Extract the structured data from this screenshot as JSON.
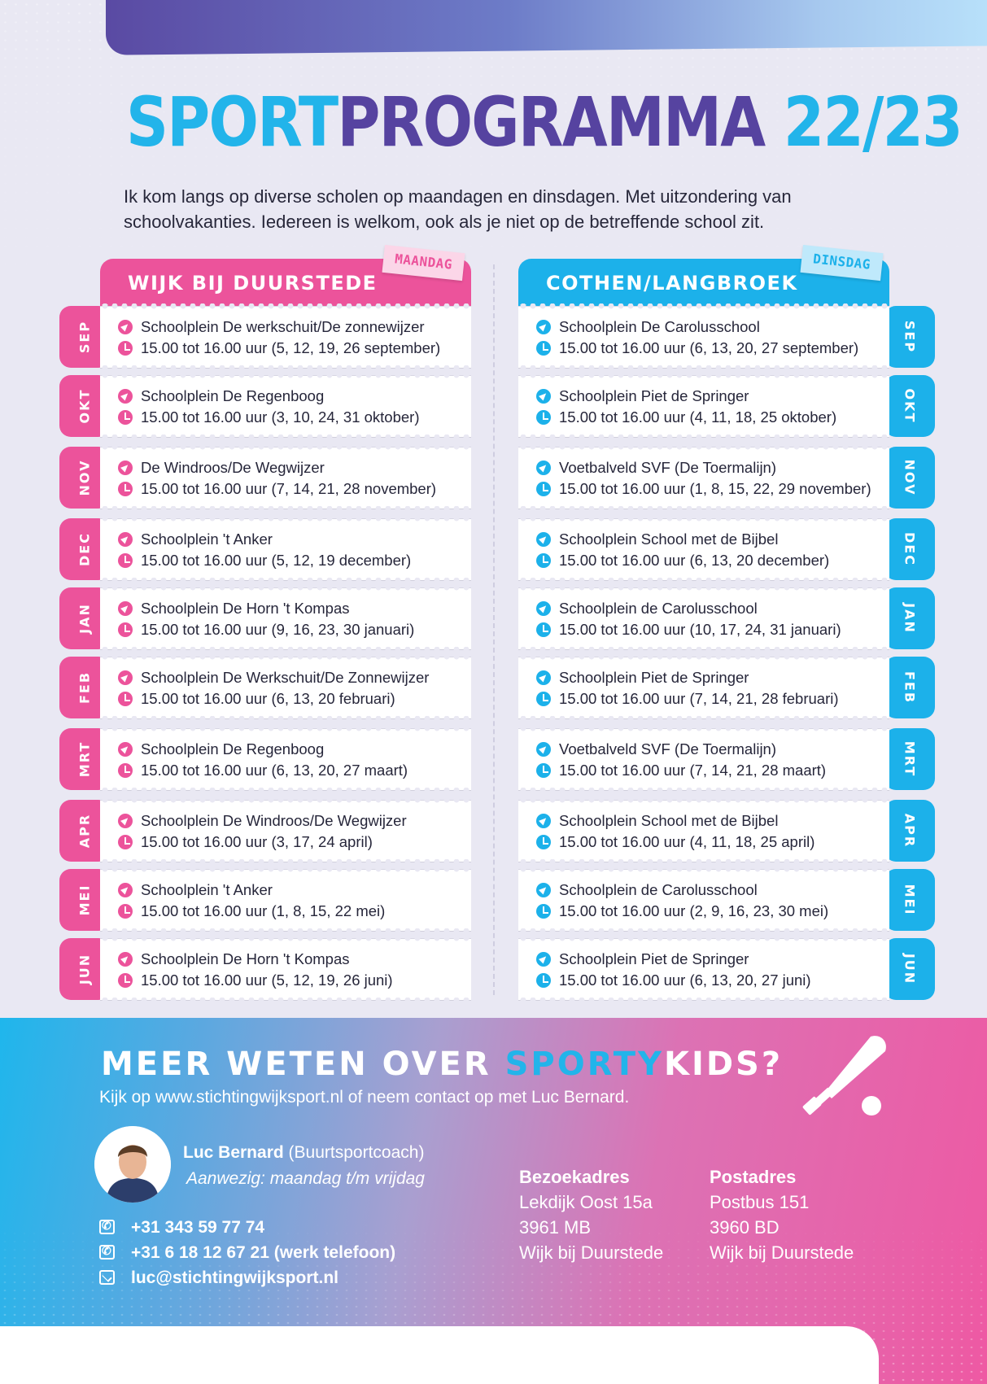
{
  "title": {
    "part1": "SPORT",
    "part2": "PROGRAMMA",
    "part3": "22/23"
  },
  "intro": "Ik kom langs op diverse scholen op maandagen en dinsdagen. Met uitzondering van schoolvakanties. Iedereen is welkom, ook als je niet op de betreffende school zit.",
  "left": {
    "header": "WIJK BIJ DUURSTEDE",
    "tag": "MAANDAG",
    "rows": [
      {
        "month": "SEP",
        "location": "Schoolplein De werkschuit/De zonnewijzer",
        "time": "15.00 tot 16.00 uur (5, 12, 19, 26 september)"
      },
      {
        "month": "OKT",
        "location": "Schoolplein De Regenboog",
        "time": "15.00 tot 16.00 uur (3, 10, 24, 31 oktober)"
      },
      {
        "month": "NOV",
        "location": "De Windroos/De Wegwijzer",
        "time": "15.00 tot 16.00 uur (7, 14, 21, 28 november)"
      },
      {
        "month": "DEC",
        "location": "Schoolplein 't Anker",
        "time": "15.00 tot 16.00 uur (5, 12, 19 december)"
      },
      {
        "month": "JAN",
        "location": "Schoolplein De Horn 't Kompas",
        "time": "15.00 tot 16.00 uur (9, 16, 23, 30 januari)"
      },
      {
        "month": "FEB",
        "location": "Schoolplein De Werkschuit/De Zonnewijzer",
        "time": "15.00 tot 16.00 uur (6, 13, 20 februari)"
      },
      {
        "month": "MRT",
        "location": "Schoolplein De Regenboog",
        "time": "15.00 tot 16.00 uur (6, 13, 20, 27 maart)"
      },
      {
        "month": "APR",
        "location": "Schoolplein De Windroos/De Wegwijzer",
        "time": "15.00 tot 16.00 uur (3, 17, 24 april)"
      },
      {
        "month": "MEI",
        "location": "Schoolplein 't Anker",
        "time": "15.00 tot 16.00 uur (1, 8, 15, 22 mei)"
      },
      {
        "month": "JUN",
        "location": "Schoolplein De Horn 't Kompas",
        "time": "15.00 tot 16.00 uur (5, 12, 19, 26 juni)"
      }
    ]
  },
  "right": {
    "header": "COTHEN/LANGBROEK",
    "tag": "DINSDAG",
    "rows": [
      {
        "month": "SEP",
        "location": "Schoolplein De Carolusschool",
        "time": "15.00 tot 16.00 uur (6, 13, 20, 27 september)"
      },
      {
        "month": "OKT",
        "location": "Schoolplein Piet de Springer",
        "time": "15.00 tot 16.00 uur (4, 11, 18, 25 oktober)"
      },
      {
        "month": "NOV",
        "location": "Voetbalveld SVF (De Toermalijn)",
        "time": "15.00 tot 16.00 uur (1, 8, 15, 22, 29 november)"
      },
      {
        "month": "DEC",
        "location": "Schoolplein School met de Bijbel",
        "time": "15.00 tot 16.00 uur (6, 13, 20 december)"
      },
      {
        "month": "JAN",
        "location": "Schoolplein de Carolusschool",
        "time": "15.00 tot 16.00 uur (10, 17, 24, 31 januari)"
      },
      {
        "month": "FEB",
        "location": "Schoolplein Piet de Springer",
        "time": "15.00 tot 16.00 uur (7, 14, 21, 28 februari)"
      },
      {
        "month": "MRT",
        "location": "Voetbalveld SVF (De Toermalijn)",
        "time": "15.00 tot 16.00 uur (7, 14, 21, 28 maart)"
      },
      {
        "month": "APR",
        "location": "Schoolplein School met de Bijbel",
        "time": "15.00 tot 16.00 uur (4, 11, 18, 25 april)"
      },
      {
        "month": "MEI",
        "location": "Schoolplein de Carolusschool",
        "time": "15.00 tot 16.00 uur (2, 9, 16, 23, 30 mei)"
      },
      {
        "month": "JUN",
        "location": "Schoolplein Piet de Springer",
        "time": "15.00 tot 16.00 uur (6, 13, 20, 27 juni)"
      }
    ]
  },
  "footer": {
    "title_before": "MEER WETEN OVER ",
    "title_accent": "SPORTY",
    "title_after": "KIDS?",
    "subtitle": "Kijk op www.stichtingwijksport.nl of neem contact op met Luc Bernard.",
    "contact_name": "Luc Bernard",
    "contact_role": " (Buurtsportcoach)",
    "availability": "Aanwezig: maandag t/m vrijdag",
    "phone1": "+31 343 59 77 74",
    "phone2": "+31 6 18 12 67 21 (werk telefoon)",
    "email": "luc@stichtingwijksport.nl",
    "visit": {
      "heading": "Bezoekadres",
      "line1": "Lekdijk Oost 15a",
      "line2": "3961 MB",
      "line3": "Wijk bij Duurstede"
    },
    "post": {
      "heading": "Postadres",
      "line1": "Postbus 151",
      "line2": "3960 BD",
      "line3": "Wijk bij Duurstede"
    }
  },
  "colors": {
    "pink": "#ec539b",
    "blue": "#1cb1ea",
    "purple": "#5643a0",
    "background": "#e9e8f3"
  }
}
